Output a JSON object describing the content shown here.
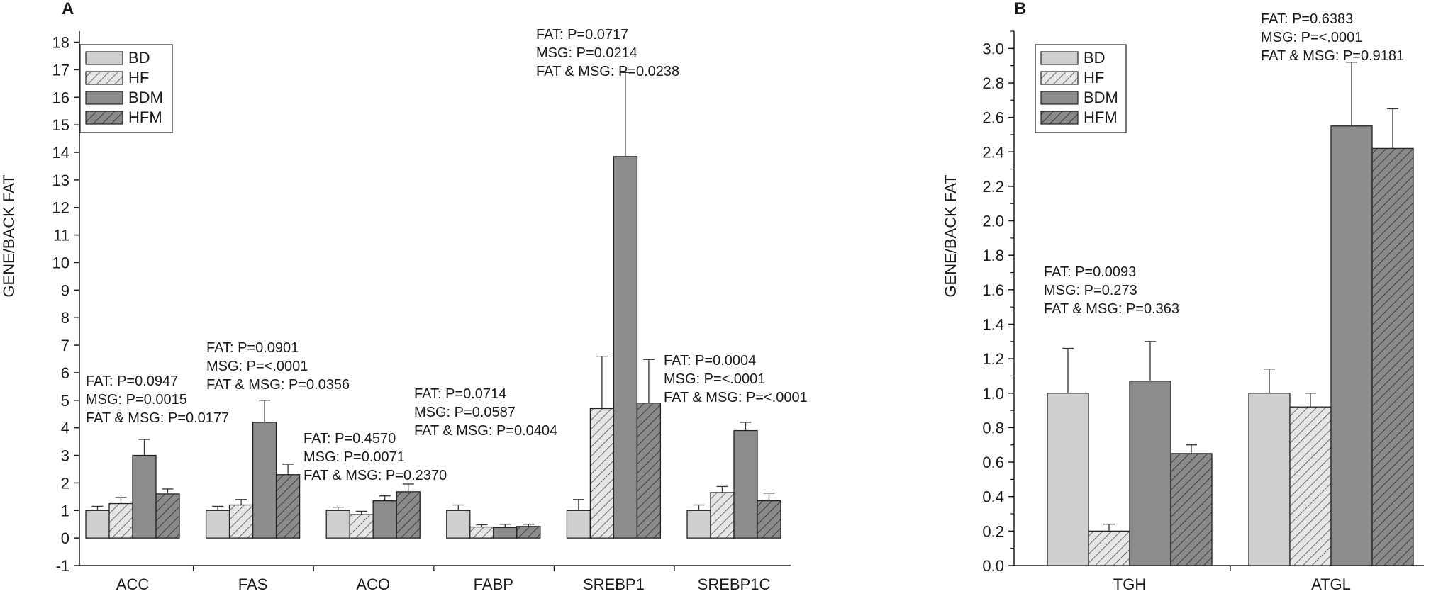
{
  "chart_data": [
    {
      "panel_label": "A",
      "type": "bar",
      "ylabel": "GENE/BACK FAT",
      "xlabel": "",
      "ylim": [
        -1,
        18
      ],
      "yticks": [
        "-1",
        "0",
        "1",
        "2",
        "3",
        "4",
        "5",
        "6",
        "7",
        "8",
        "9",
        "10",
        "11",
        "12",
        "13",
        "14",
        "15",
        "16",
        "17",
        "18"
      ],
      "legend": {
        "position": "top-left",
        "entries": [
          "BD",
          "HF",
          "BDM",
          "HFM"
        ]
      },
      "categories": [
        "ACC",
        "FAS",
        "ACO",
        "FABP",
        "SREBP1",
        "SREBP1C"
      ],
      "series": [
        {
          "name": "BD",
          "values": [
            1.0,
            1.0,
            1.0,
            1.0,
            1.0,
            1.0
          ],
          "errors": [
            0.15,
            0.15,
            0.12,
            0.2,
            0.4,
            0.2
          ]
        },
        {
          "name": "HF",
          "values": [
            1.25,
            1.2,
            0.85,
            0.4,
            4.7,
            1.65
          ],
          "errors": [
            0.22,
            0.2,
            0.12,
            0.08,
            1.9,
            0.22
          ]
        },
        {
          "name": "BDM",
          "values": [
            3.0,
            4.2,
            1.35,
            0.38,
            13.85,
            3.9
          ],
          "errors": [
            0.58,
            0.8,
            0.18,
            0.12,
            3.05,
            0.3
          ]
        },
        {
          "name": "HFM",
          "values": [
            1.6,
            2.3,
            1.68,
            0.42,
            4.9,
            1.35
          ],
          "errors": [
            0.18,
            0.38,
            0.28,
            0.08,
            1.58,
            0.28
          ]
        }
      ],
      "annotations": [
        {
          "category": "ACC",
          "lines": [
            "FAT: P=0.0947",
            "MSG: P=0.0015",
            "FAT & MSG: P=0.0177"
          ]
        },
        {
          "category": "FAS",
          "lines": [
            "FAT: P=0.0901",
            "MSG: P=<.0001",
            "FAT & MSG: P=0.0356"
          ]
        },
        {
          "category": "ACO",
          "lines": [
            "FAT: P=0.4570",
            "MSG: P=0.0071",
            "FAT & MSG: P=0.2370"
          ]
        },
        {
          "category": "FABP",
          "lines": [
            "FAT: P=0.0714",
            "MSG: P=0.0587",
            "FAT & MSG: P=0.0404"
          ]
        },
        {
          "category": "SREBP1",
          "lines": [
            "FAT: P=0.0717",
            "MSG: P=0.0214",
            "FAT & MSG: P=0.0238"
          ]
        },
        {
          "category": "SREBP1C",
          "lines": [
            "FAT: P=0.0004",
            "MSG: P=<.0001",
            "FAT & MSG: P=<.0001"
          ]
        }
      ]
    },
    {
      "panel_label": "B",
      "type": "bar",
      "ylabel": "GENE/BACK FAT",
      "xlabel": "",
      "ylim": [
        0,
        3.1
      ],
      "yticks": [
        "0.0",
        "0.2",
        "0.4",
        "0.6",
        "0.8",
        "1.0",
        "1.2",
        "1.4",
        "1.6",
        "1.8",
        "2.0",
        "2.2",
        "2.4",
        "2.6",
        "2.8",
        "3.0"
      ],
      "legend": {
        "position": "top-left",
        "entries": [
          "BD",
          "HF",
          "BDM",
          "HFM"
        ]
      },
      "categories": [
        "TGH",
        "ATGL"
      ],
      "series": [
        {
          "name": "BD",
          "values": [
            1.0,
            1.0
          ],
          "errors": [
            0.26,
            0.14
          ]
        },
        {
          "name": "HF",
          "values": [
            0.2,
            0.92
          ],
          "errors": [
            0.04,
            0.08
          ]
        },
        {
          "name": "BDM",
          "values": [
            1.07,
            2.55
          ],
          "errors": [
            0.23,
            0.37
          ]
        },
        {
          "name": "HFM",
          "values": [
            0.65,
            2.42
          ],
          "errors": [
            0.05,
            0.23
          ]
        }
      ],
      "annotations": [
        {
          "category": "TGH",
          "lines": [
            "FAT: P=0.0093",
            "MSG: P=0.273",
            "FAT & MSG: P=0.363"
          ]
        },
        {
          "category": "ATGL",
          "lines": [
            "FAT: P=0.6383",
            "MSG: P=<.0001",
            "FAT & MSG: P=0.9181"
          ]
        }
      ]
    }
  ],
  "colors": {
    "BD": "#cfcfcf",
    "HF": "#e6e6e6",
    "BDM": "#8c8c8c",
    "HFM": "#7b7b7b",
    "hatch": "#3a3a3a",
    "axis": "#1a1a1a"
  }
}
